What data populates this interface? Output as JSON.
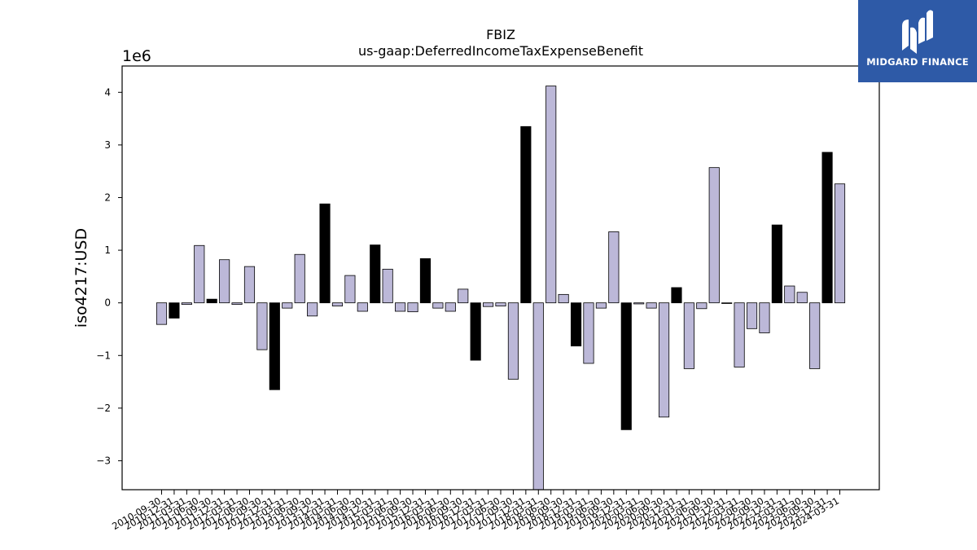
{
  "chart_data": {
    "type": "bar",
    "title": "FBIZ",
    "subtitle": "us-gaap:DeferredIncomeTaxExpenseBenefit",
    "ylabel": "iso4217:USD",
    "xlabel": "",
    "y_multiplier": "1e6",
    "ylim": [
      -3.55,
      4.5
    ],
    "yticks": [
      -3,
      -2,
      -1,
      0,
      1,
      2,
      3,
      4
    ],
    "bar_colors": {
      "light": "#bcb8d8",
      "dark": "#000000",
      "edge": "#000000"
    },
    "categories": [
      "2010-09-30",
      "2010-12-31",
      "2011-03-31",
      "2011-06-30",
      "2011-09-30",
      "2011-12-31",
      "2012-03-31",
      "2012-06-30",
      "2012-09-30",
      "2012-12-31",
      "2013-03-31",
      "2013-06-30",
      "2013-09-30",
      "2013-12-31",
      "2014-03-31",
      "2014-06-30",
      "2014-09-30",
      "2014-12-31",
      "2015-03-31",
      "2015-06-30",
      "2015-09-30",
      "2015-12-31",
      "2016-03-31",
      "2016-06-30",
      "2016-09-30",
      "2016-12-31",
      "2017-03-31",
      "2017-06-30",
      "2017-09-30",
      "2017-12-31",
      "2018-03-31",
      "2018-06-30",
      "2018-09-30",
      "2018-12-31",
      "2019-03-31",
      "2019-06-30",
      "2019-09-30",
      "2019-12-31",
      "2020-03-31",
      "2020-06-30",
      "2020-09-30",
      "2020-12-31",
      "2021-03-31",
      "2021-06-30",
      "2021-09-30",
      "2021-12-31",
      "2022-03-31",
      "2022-06-30",
      "2022-09-30",
      "2022-12-31",
      "2023-03-31",
      "2023-06-30",
      "2023-09-30",
      "2023-12-31",
      "2024-03-31"
    ],
    "values": [
      -0.41,
      -0.29,
      -0.03,
      1.09,
      0.07,
      0.82,
      -0.03,
      0.69,
      -0.89,
      -1.65,
      -0.1,
      0.92,
      -0.25,
      1.88,
      -0.06,
      0.52,
      -0.16,
      1.1,
      0.64,
      -0.16,
      -0.17,
      0.84,
      -0.1,
      -0.16,
      0.26,
      -1.09,
      -0.07,
      -0.06,
      -1.45,
      3.35,
      -3.55,
      4.12,
      0.16,
      -0.82,
      -1.15,
      -0.1,
      1.35,
      -2.41,
      -0.02,
      -0.1,
      -2.17,
      0.29,
      -1.25,
      -0.11,
      2.57,
      -0.01,
      -1.22,
      -0.49,
      -0.57,
      1.48,
      0.32,
      0.2,
      -1.25,
      2.86,
      2.26
    ],
    "dark_bars": [
      1,
      4,
      9,
      13,
      17,
      21,
      25,
      29,
      33,
      37,
      41,
      45,
      49,
      53
    ]
  },
  "logo": {
    "text": "MIDGARD FINANCE",
    "bg_color": "#2e5aa7",
    "fg_color": "#ffffff"
  }
}
